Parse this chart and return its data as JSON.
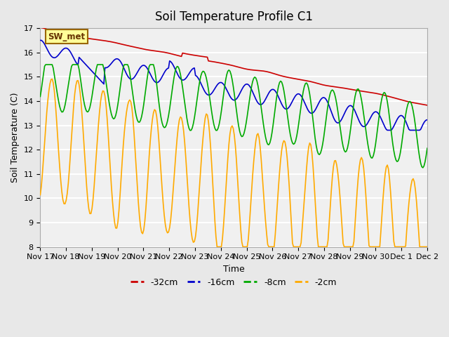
{
  "title": "Soil Temperature Profile C1",
  "xlabel": "Time",
  "ylabel": "Soil Temperature (C)",
  "ylim": [
    8.0,
    17.0
  ],
  "yticks": [
    8.0,
    9.0,
    10.0,
    11.0,
    12.0,
    13.0,
    14.0,
    15.0,
    16.0,
    17.0
  ],
  "xtick_labels": [
    "Nov 17",
    "Nov 18",
    "Nov 19",
    "Nov 20",
    "Nov 21",
    "Nov 22",
    "Nov 23",
    "Nov 24",
    "Nov 25",
    "Nov 26",
    "Nov 27",
    "Nov 28",
    "Nov 29",
    "Nov 30",
    "Dec 1",
    "Dec 2"
  ],
  "legend_labels": [
    "-32cm",
    "-16cm",
    "-8cm",
    "-2cm"
  ],
  "legend_colors": [
    "#cc0000",
    "#0000cc",
    "#00aa00",
    "#ffaa00"
  ],
  "line_colors": [
    "#cc0000",
    "#0000cc",
    "#00aa00",
    "#ffaa00"
  ],
  "annotation_text": "SW_met",
  "background_color": "#e8e8e8",
  "plot_bg_color": "#f0f0f0",
  "grid_color": "#ffffff",
  "figsize": [
    6.4,
    4.8
  ],
  "dpi": 100,
  "n_days": 15
}
